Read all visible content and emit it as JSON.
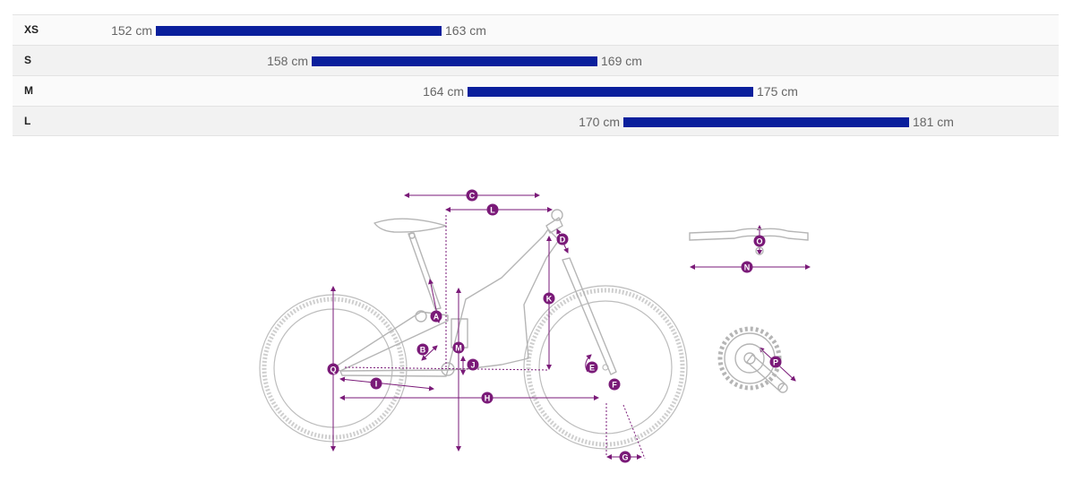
{
  "chart_data": {
    "type": "bar",
    "orientation": "horizontal-range",
    "categories": [
      "XS",
      "S",
      "M",
      "L"
    ],
    "series": [
      {
        "values": [
          [
            152,
            163
          ],
          [
            158,
            169
          ],
          [
            164,
            175
          ],
          [
            170,
            181
          ]
        ]
      }
    ],
    "unit": "cm",
    "xlim": [
      147,
      195
    ],
    "grid": false,
    "colors": {
      "bar": "#0a1f9c"
    }
  },
  "rows": [
    {
      "size": "XS",
      "min_label": "152 cm",
      "max_label": "163 cm"
    },
    {
      "size": "S",
      "min_label": "158 cm",
      "max_label": "169 cm"
    },
    {
      "size": "M",
      "min_label": "164 cm",
      "max_label": "175 cm"
    },
    {
      "size": "L",
      "min_label": "170 cm",
      "max_label": "181 cm"
    }
  ],
  "geometry_letters": [
    "A",
    "B",
    "C",
    "D",
    "E",
    "F",
    "G",
    "H",
    "I",
    "J",
    "K",
    "L",
    "M",
    "N",
    "O",
    "P",
    "Q"
  ],
  "colors": {
    "accent": "#7a1a78",
    "frame": "#b9b9b9",
    "table_border": "#e3e3e3"
  }
}
